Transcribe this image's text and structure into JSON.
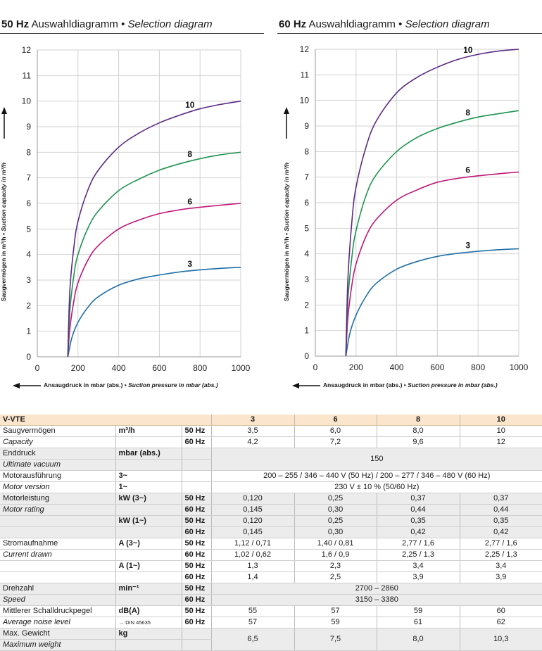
{
  "panels": [
    {
      "hz": "50 Hz",
      "de": "Auswahldiagramm",
      "sep": "•",
      "en": "Selection diagram"
    },
    {
      "hz": "60 Hz",
      "de": "Auswahldiagramm",
      "sep": "•",
      "en": "Selection diagram"
    }
  ],
  "axis_labels": {
    "y_de": "Saugvermögen in m³/h",
    "y_en": "Suction capacity in m³/h",
    "x_de": "Ansaugdruck in mbar (abs.)",
    "x_en": "Suction pressure in mbar (abs.)"
  },
  "chart_data": [
    {
      "type": "line",
      "title": "50 Hz Auswahldiagramm • Selection diagram",
      "xlabel": "Ansaugdruck in mbar (abs.) • Suction pressure in mbar (abs.)",
      "ylabel": "Saugvermögen in m³/h • Suction capacity in m³/h",
      "xlim": [
        0,
        1000
      ],
      "ylim": [
        0,
        12
      ],
      "xticks": [
        0,
        200,
        400,
        600,
        800,
        1000
      ],
      "yticks": [
        0,
        1,
        2,
        3,
        4,
        5,
        6,
        7,
        8,
        9,
        10,
        11,
        12
      ],
      "grid": true,
      "series": [
        {
          "name": "3",
          "color": "#1f6fa6",
          "x": [
            150,
            170,
            200,
            250,
            300,
            400,
            500,
            600,
            700,
            800,
            900,
            1000
          ],
          "y": [
            0,
            0.75,
            1.35,
            1.95,
            2.35,
            2.8,
            3.05,
            3.2,
            3.32,
            3.4,
            3.46,
            3.5
          ]
        },
        {
          "name": "6",
          "color": "#c0177a",
          "x": [
            150,
            160,
            180,
            200,
            250,
            300,
            400,
            500,
            600,
            700,
            800,
            900,
            1000
          ],
          "y": [
            0,
            1.1,
            2.2,
            2.9,
            3.8,
            4.35,
            5.0,
            5.35,
            5.6,
            5.75,
            5.85,
            5.93,
            6.0
          ]
        },
        {
          "name": "8",
          "color": "#1f9450",
          "x": [
            150,
            160,
            180,
            200,
            250,
            300,
            400,
            500,
            600,
            700,
            800,
            900,
            1000
          ],
          "y": [
            0,
            1.8,
            3.2,
            4.0,
            5.05,
            5.7,
            6.5,
            6.95,
            7.3,
            7.55,
            7.75,
            7.9,
            8.0
          ]
        },
        {
          "name": "10",
          "color": "#5b2a86",
          "x": [
            150,
            160,
            180,
            200,
            250,
            300,
            400,
            500,
            600,
            700,
            800,
            900,
            1000
          ],
          "y": [
            0,
            2.6,
            4.3,
            5.3,
            6.55,
            7.3,
            8.2,
            8.75,
            9.15,
            9.45,
            9.7,
            9.87,
            10.0
          ]
        }
      ]
    },
    {
      "type": "line",
      "title": "60 Hz Auswahldiagramm • Selection diagram",
      "xlabel": "Ansaugdruck in mbar (abs.) • Suction pressure in mbar (abs.)",
      "ylabel": "Saugvermögen in m³/h • Suction capacity in m³/h",
      "xlim": [
        0,
        1000
      ],
      "ylim": [
        0,
        12
      ],
      "xticks": [
        0,
        200,
        400,
        600,
        800,
        1000
      ],
      "yticks": [
        0,
        1,
        2,
        3,
        4,
        5,
        6,
        7,
        8,
        9,
        10,
        11,
        12
      ],
      "grid": true,
      "series": [
        {
          "name": "3",
          "color": "#1f6fa6",
          "x": [
            150,
            170,
            200,
            250,
            300,
            400,
            500,
            600,
            700,
            800,
            900,
            1000
          ],
          "y": [
            0,
            0.9,
            1.6,
            2.35,
            2.85,
            3.4,
            3.7,
            3.9,
            4.02,
            4.1,
            4.16,
            4.2
          ]
        },
        {
          "name": "6",
          "color": "#c0177a",
          "x": [
            150,
            160,
            180,
            200,
            250,
            300,
            400,
            500,
            600,
            700,
            800,
            900,
            1000
          ],
          "y": [
            0,
            1.5,
            2.8,
            3.6,
            4.7,
            5.35,
            6.1,
            6.5,
            6.8,
            6.95,
            7.05,
            7.13,
            7.2
          ]
        },
        {
          "name": "8",
          "color": "#1f9450",
          "x": [
            150,
            160,
            180,
            200,
            250,
            300,
            400,
            500,
            600,
            700,
            800,
            900,
            1000
          ],
          "y": [
            0,
            2.2,
            3.9,
            4.9,
            6.3,
            7.1,
            8.0,
            8.55,
            8.9,
            9.15,
            9.35,
            9.48,
            9.6
          ]
        },
        {
          "name": "10",
          "color": "#5b2a86",
          "x": [
            150,
            160,
            180,
            200,
            250,
            300,
            400,
            500,
            600,
            700,
            800,
            900,
            1000
          ],
          "y": [
            0,
            3.0,
            5.3,
            6.6,
            8.2,
            9.2,
            10.3,
            10.9,
            11.3,
            11.6,
            11.8,
            11.93,
            12.0
          ]
        }
      ]
    }
  ],
  "table": {
    "header": {
      "model": "V-VTE",
      "sizes": [
        "3",
        "6",
        "8",
        "10"
      ]
    },
    "capacity": {
      "de": "Saugvermögen",
      "en": "Capacity",
      "unit": "m³/h",
      "hz50": "50 Hz",
      "hz60": "60 Hz",
      "v50": [
        "3,5",
        "6,0",
        "8,0",
        "10"
      ],
      "v60": [
        "4,2",
        "7,2",
        "9,6",
        "12"
      ]
    },
    "vacuum": {
      "de": "Enddruck",
      "en": "Ultimate vacuum",
      "unit": "mbar (abs.)",
      "value": "150"
    },
    "motor": {
      "de": "Motorausführung",
      "en": "Motor version",
      "u3": "3~",
      "u1": "1~",
      "v3": "200 – 255 / 346 – 440 V (50 Hz) / 200 – 277 / 346 – 480 V (60 Hz)",
      "v1": "230 V ± 10 % (50/60 Hz)"
    },
    "rating": {
      "de": "Motorleistung",
      "en": "Motor rating",
      "u3": "kW (3~)",
      "u1": "kW (1~)",
      "hz50": "50 Hz",
      "hz60": "60 Hz",
      "r3_50": [
        "0,120",
        "0,25",
        "0,37",
        "0,37"
      ],
      "r3_60": [
        "0,145",
        "0,30",
        "0,44",
        "0,44"
      ],
      "r1_50": [
        "0,120",
        "0,25",
        "0,35",
        "0,35"
      ],
      "r1_60": [
        "0,145",
        "0,30",
        "0,42",
        "0,42"
      ]
    },
    "current": {
      "de": "Stromaufnahme",
      "en": "Current drawn",
      "u3": "A (3~)",
      "u1": "A (1~)",
      "hz50": "50 Hz",
      "hz60": "60 Hz",
      "c3_50": [
        "1,12 / 0,71",
        "1,40 / 0,81",
        "2,77 / 1,6",
        "2,77 / 1,6"
      ],
      "c3_60": [
        "1,02 / 0,62",
        "1,6 / 0,9",
        "2,25 / 1,3",
        "2,25 / 1,3"
      ],
      "c1_50": [
        "1,3",
        "2,3",
        "3,4",
        "3,4"
      ],
      "c1_60": [
        "1,4",
        "2,5",
        "3,9",
        "3,9"
      ]
    },
    "speed": {
      "de": "Drehzahl",
      "en": "Speed",
      "unit": "min⁻¹",
      "hz50": "50 Hz",
      "hz60": "60 Hz",
      "v50": "2700 – 2860",
      "v60": "3150 – 3380"
    },
    "noise": {
      "de": "Mittlerer Schalldruckpegel",
      "en": "Average noise level",
      "unit": "dB(A)",
      "ref": "→ DIN 45635",
      "hz50": "50 Hz",
      "hz60": "60 Hz",
      "v50": [
        "55",
        "57",
        "59",
        "60"
      ],
      "v60": [
        "57",
        "59",
        "61",
        "62"
      ]
    },
    "weight": {
      "de": "Max. Gewicht",
      "en": "Maximum weight",
      "unit": "kg",
      "values": [
        "6,5",
        "7,5",
        "8,0",
        "10,3"
      ]
    }
  }
}
